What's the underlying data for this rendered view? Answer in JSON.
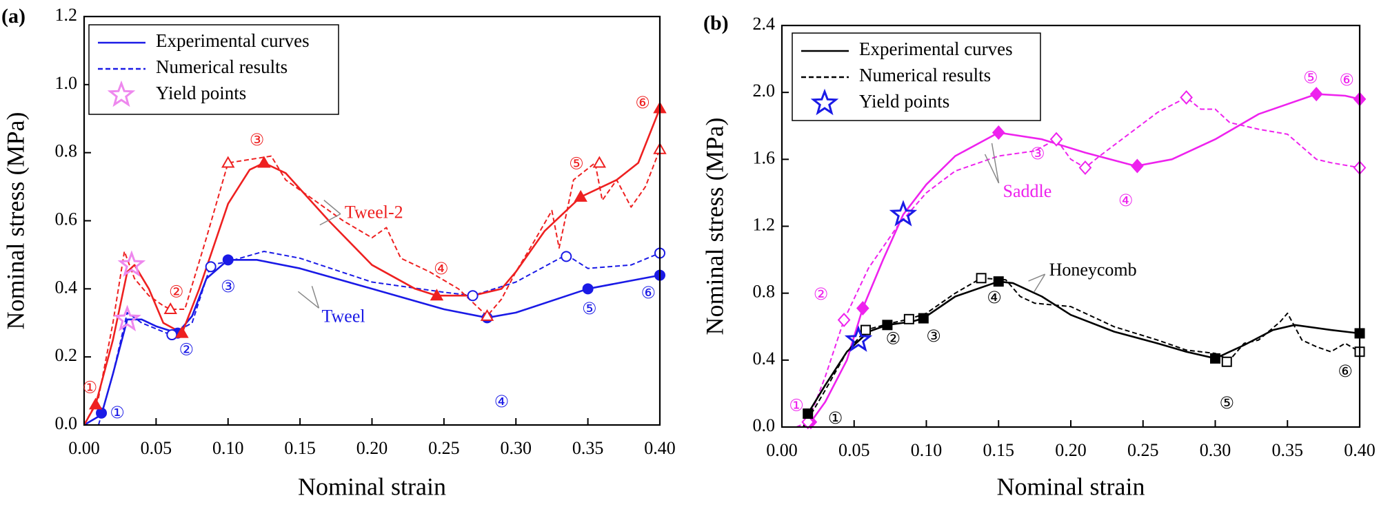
{
  "chart_data": [
    {
      "type": "line",
      "panel_label": "(a)",
      "xlabel": "Nominal strain",
      "ylabel": "Nominal stress (MPa)",
      "xlim": [
        0,
        0.4
      ],
      "ylim": [
        0,
        1.2
      ],
      "xticks": [
        {
          "value": 0,
          "label": "0.00"
        },
        0.05,
        {
          "value": 0.1,
          "label": "0.10"
        },
        0.15,
        {
          "value": 0.2,
          "label": "0.20"
        },
        0.25,
        {
          "value": 0.3,
          "label": "0.30"
        },
        0.35,
        {
          "value": 0.4,
          "label": "0.40"
        }
      ],
      "yticks": [
        {
          "value": 0,
          "label": "0.0"
        },
        0.2,
        0.4,
        0.6,
        0.8,
        {
          "value": 1,
          "label": "1.0"
        },
        1.2
      ],
      "legend": {
        "position": "upper left",
        "entries": [
          {
            "label": "Experimental curves",
            "kind": "line",
            "style": "solid",
            "color": "#1a1ae6"
          },
          {
            "label": "Numerical results",
            "kind": "line",
            "style": "dashed",
            "color": "#1a1ae6"
          },
          {
            "label": "Yield points",
            "kind": "star",
            "color": "#ee88ee"
          }
        ]
      },
      "series": [
        {
          "kind": "line",
          "style": "solid",
          "color": "#1a1ae6",
          "x": [
            0.0,
            0.012,
            0.02,
            0.03,
            0.04,
            0.05,
            0.065,
            0.075,
            0.085,
            0.1,
            0.12,
            0.15,
            0.2,
            0.25,
            0.28,
            0.3,
            0.35,
            0.4
          ],
          "values": [
            0.0,
            0.03,
            0.15,
            0.31,
            0.31,
            0.29,
            0.27,
            0.32,
            0.43,
            0.485,
            0.485,
            0.46,
            0.4,
            0.34,
            0.315,
            0.33,
            0.4,
            0.44
          ]
        },
        {
          "kind": "line",
          "style": "dashed",
          "color": "#1a1ae6",
          "x": [
            0.01,
            0.02,
            0.03,
            0.04,
            0.06,
            0.075,
            0.088,
            0.1,
            0.125,
            0.15,
            0.2,
            0.25,
            0.27,
            0.3,
            0.335,
            0.35,
            0.38,
            0.4
          ],
          "values": [
            0.0,
            0.15,
            0.33,
            0.3,
            0.265,
            0.3,
            0.47,
            0.48,
            0.51,
            0.49,
            0.42,
            0.39,
            0.38,
            0.42,
            0.5,
            0.46,
            0.47,
            0.505
          ]
        },
        {
          "kind": "line",
          "style": "solid",
          "color": "#ee2020",
          "x": [
            0.0,
            0.008,
            0.02,
            0.03,
            0.035,
            0.045,
            0.055,
            0.068,
            0.08,
            0.1,
            0.115,
            0.125,
            0.14,
            0.17,
            0.2,
            0.23,
            0.245,
            0.27,
            0.29,
            0.3,
            0.32,
            0.345,
            0.37,
            0.385,
            0.4
          ],
          "values": [
            0.0,
            0.06,
            0.25,
            0.45,
            0.47,
            0.4,
            0.3,
            0.27,
            0.4,
            0.65,
            0.75,
            0.77,
            0.74,
            0.6,
            0.47,
            0.4,
            0.38,
            0.38,
            0.4,
            0.45,
            0.57,
            0.67,
            0.72,
            0.77,
            0.93
          ]
        },
        {
          "kind": "line",
          "style": "dashed",
          "color": "#ee2020",
          "x": [
            0.0,
            0.01,
            0.02,
            0.028,
            0.035,
            0.045,
            0.055,
            0.06,
            0.07,
            0.085,
            0.1,
            0.115,
            0.13,
            0.14,
            0.16,
            0.18,
            0.2,
            0.21,
            0.22,
            0.24,
            0.26,
            0.28,
            0.29,
            0.3,
            0.31,
            0.325,
            0.33,
            0.34,
            0.355,
            0.36,
            0.37,
            0.38,
            0.39,
            0.4
          ],
          "values": [
            0.0,
            0.08,
            0.3,
            0.51,
            0.43,
            0.38,
            0.35,
            0.34,
            0.34,
            0.55,
            0.77,
            0.78,
            0.79,
            0.72,
            0.66,
            0.6,
            0.55,
            0.58,
            0.49,
            0.45,
            0.4,
            0.32,
            0.37,
            0.45,
            0.52,
            0.63,
            0.52,
            0.72,
            0.77,
            0.66,
            0.72,
            0.64,
            0.7,
            0.81
          ]
        },
        {
          "kind": "markers",
          "marker": "circle",
          "filled": true,
          "color": "#1a1ae6",
          "x": [
            0.012,
            0.065,
            0.1,
            0.28,
            0.35,
            0.4
          ],
          "values": [
            0.035,
            0.27,
            0.485,
            0.315,
            0.4,
            0.44
          ]
        },
        {
          "kind": "markers",
          "marker": "circle",
          "filled": false,
          "color": "#1a1ae6",
          "x": [
            0.061,
            0.088,
            0.27,
            0.335,
            0.4
          ],
          "values": [
            0.265,
            0.465,
            0.38,
            0.495,
            0.505
          ]
        },
        {
          "kind": "markers",
          "marker": "triangle",
          "filled": true,
          "color": "#ee2020",
          "x": [
            0.008,
            0.068,
            0.125,
            0.245,
            0.345,
            0.4
          ],
          "values": [
            0.06,
            0.27,
            0.77,
            0.38,
            0.67,
            0.93
          ]
        },
        {
          "kind": "markers",
          "marker": "triangle",
          "filled": false,
          "color": "#ee2020",
          "x": [
            0.06,
            0.1,
            0.28,
            0.358,
            0.4
          ],
          "values": [
            0.34,
            0.77,
            0.32,
            0.77,
            0.81
          ]
        },
        {
          "kind": "markers",
          "marker": "star",
          "filled": false,
          "color": "#ee88ee",
          "x": [
            0.03,
            0.033
          ],
          "values": [
            0.31,
            0.47
          ]
        }
      ],
      "annotations": [
        {
          "text": "Tweel-2",
          "x": 0.181,
          "y": 0.62,
          "color": "#ee2020"
        },
        {
          "text": "Tweel",
          "x": 0.165,
          "y": 0.315,
          "color": "#1a1ae6"
        },
        {
          "text": "①",
          "x": 0.004,
          "y": 0.108,
          "color": "#ee2020"
        },
        {
          "text": "①",
          "x": 0.023,
          "y": 0.034,
          "color": "#1a1ae6"
        },
        {
          "text": "②",
          "x": 0.064,
          "y": 0.39,
          "color": "#ee2020"
        },
        {
          "text": "②",
          "x": 0.071,
          "y": 0.22,
          "color": "#1a1ae6"
        },
        {
          "text": "③",
          "x": 0.12,
          "y": 0.836,
          "color": "#ee2020"
        },
        {
          "text": "③",
          "x": 0.1,
          "y": 0.405,
          "color": "#1a1ae6"
        },
        {
          "text": "④",
          "x": 0.248,
          "y": 0.457,
          "color": "#ee2020"
        },
        {
          "text": "④",
          "x": 0.29,
          "y": 0.067,
          "color": "#1a1ae6"
        },
        {
          "text": "⑤",
          "x": 0.342,
          "y": 0.766,
          "color": "#ee2020"
        },
        {
          "text": "⑤",
          "x": 0.351,
          "y": 0.34,
          "color": "#1a1ae6"
        },
        {
          "text": "⑥",
          "x": 0.388,
          "y": 0.945,
          "color": "#ee2020"
        },
        {
          "text": "⑥",
          "x": 0.392,
          "y": 0.387,
          "color": "#1a1ae6"
        }
      ]
    },
    {
      "type": "line",
      "panel_label": "(b)",
      "xlabel": "Nominal strain",
      "ylabel": "Nominal stress (MPa)",
      "xlim": [
        0,
        0.4
      ],
      "ylim": [
        0,
        2.4
      ],
      "xticks": [
        {
          "value": 0,
          "label": "0.00"
        },
        0.05,
        {
          "value": 0.1,
          "label": "0.10"
        },
        0.15,
        {
          "value": 0.2,
          "label": "0.20"
        },
        0.25,
        {
          "value": 0.3,
          "label": "0.30"
        },
        0.35,
        {
          "value": 0.4,
          "label": "0.40"
        }
      ],
      "yticks": [
        {
          "value": 0,
          "label": "0.0"
        },
        0.4,
        0.8,
        1.2,
        1.6,
        {
          "value": 2,
          "label": "2.0"
        },
        2.4
      ],
      "legend": {
        "position": "upper left",
        "entries": [
          {
            "label": "Experimental curves",
            "kind": "line",
            "style": "solid",
            "color": "#000000"
          },
          {
            "label": "Numerical results",
            "kind": "line",
            "style": "dashed",
            "color": "#000000"
          },
          {
            "label": "Yield points",
            "kind": "star",
            "color": "#1a1ae6"
          }
        ]
      },
      "series": [
        {
          "kind": "line",
          "style": "solid",
          "color": "#ee22ee",
          "x": [
            0.015,
            0.02,
            0.03,
            0.045,
            0.056,
            0.07,
            0.084,
            0.1,
            0.12,
            0.15,
            0.18,
            0.21,
            0.245,
            0.27,
            0.3,
            0.33,
            0.37,
            0.39,
            0.4
          ],
          "values": [
            0.0,
            0.03,
            0.15,
            0.4,
            0.71,
            1.0,
            1.27,
            1.45,
            1.62,
            1.76,
            1.72,
            1.64,
            1.56,
            1.6,
            1.72,
            1.87,
            1.99,
            1.98,
            1.96
          ]
        },
        {
          "kind": "line",
          "style": "dashed",
          "color": "#ee22ee",
          "x": [
            0.01,
            0.018,
            0.03,
            0.043,
            0.06,
            0.08,
            0.1,
            0.12,
            0.15,
            0.175,
            0.19,
            0.2,
            0.21,
            0.22,
            0.24,
            0.26,
            0.28,
            0.29,
            0.3,
            0.31,
            0.33,
            0.35,
            0.37,
            0.38,
            0.4
          ],
          "values": [
            0.0,
            0.03,
            0.3,
            0.64,
            0.95,
            1.2,
            1.4,
            1.53,
            1.62,
            1.65,
            1.72,
            1.6,
            1.55,
            1.62,
            1.75,
            1.88,
            1.97,
            1.9,
            1.9,
            1.82,
            1.78,
            1.75,
            1.6,
            1.58,
            1.55
          ]
        },
        {
          "kind": "line",
          "style": "solid",
          "color": "#000000",
          "x": [
            0.015,
            0.018,
            0.03,
            0.045,
            0.06,
            0.073,
            0.09,
            0.098,
            0.12,
            0.15,
            0.16,
            0.18,
            0.2,
            0.23,
            0.26,
            0.28,
            0.3,
            0.32,
            0.34,
            0.355,
            0.38,
            0.4
          ],
          "values": [
            0.0,
            0.08,
            0.25,
            0.45,
            0.57,
            0.61,
            0.63,
            0.65,
            0.78,
            0.87,
            0.86,
            0.78,
            0.67,
            0.57,
            0.5,
            0.45,
            0.41,
            0.49,
            0.58,
            0.61,
            0.58,
            0.56
          ]
        },
        {
          "kind": "line",
          "style": "dashed",
          "color": "#000000",
          "x": [
            0.015,
            0.03,
            0.045,
            0.058,
            0.075,
            0.088,
            0.1,
            0.12,
            0.138,
            0.155,
            0.165,
            0.175,
            0.2,
            0.23,
            0.26,
            0.28,
            0.3,
            0.31,
            0.32,
            0.33,
            0.345,
            0.35,
            0.36,
            0.37,
            0.38,
            0.39,
            0.4
          ],
          "values": [
            0.0,
            0.22,
            0.45,
            0.58,
            0.62,
            0.645,
            0.68,
            0.8,
            0.89,
            0.88,
            0.78,
            0.74,
            0.72,
            0.6,
            0.52,
            0.46,
            0.44,
            0.4,
            0.5,
            0.52,
            0.63,
            0.68,
            0.52,
            0.48,
            0.45,
            0.5,
            0.45
          ]
        },
        {
          "kind": "markers",
          "marker": "diamond",
          "filled": true,
          "color": "#ee22ee",
          "x": [
            0.02,
            0.056,
            0.15,
            0.246,
            0.37,
            0.4
          ],
          "values": [
            0.03,
            0.71,
            1.76,
            1.56,
            1.99,
            1.96
          ]
        },
        {
          "kind": "markers",
          "marker": "diamond",
          "filled": false,
          "color": "#ee22ee",
          "x": [
            0.018,
            0.043,
            0.19,
            0.21,
            0.28,
            0.4
          ],
          "values": [
            0.03,
            0.64,
            1.72,
            1.55,
            1.97,
            1.55
          ]
        },
        {
          "kind": "markers",
          "marker": "square",
          "filled": true,
          "color": "#000000",
          "x": [
            0.018,
            0.073,
            0.098,
            0.15,
            0.3,
            0.4
          ],
          "values": [
            0.08,
            0.61,
            0.65,
            0.87,
            0.41,
            0.56
          ]
        },
        {
          "kind": "markers",
          "marker": "square",
          "filled": false,
          "color": "#000000",
          "x": [
            0.058,
            0.088,
            0.138,
            0.308,
            0.4
          ],
          "values": [
            0.58,
            0.645,
            0.89,
            0.39,
            0.45
          ]
        },
        {
          "kind": "markers",
          "marker": "star",
          "filled": false,
          "color": "#1a1ae6",
          "x": [
            0.084,
            0.053
          ],
          "values": [
            1.27,
            0.52
          ]
        }
      ],
      "annotations": [
        {
          "text": "Saddle",
          "x": 0.153,
          "y": 1.4,
          "color": "#ee22ee"
        },
        {
          "text": "Honeycomb",
          "x": 0.185,
          "y": 0.93,
          "color": "#000000"
        },
        {
          "text": "①",
          "x": 0.01,
          "y": 0.126,
          "color": "#ee22ee"
        },
        {
          "text": "①",
          "x": 0.037,
          "y": 0.05,
          "color": "#000000"
        },
        {
          "text": "②",
          "x": 0.027,
          "y": 0.79,
          "color": "#ee22ee"
        },
        {
          "text": "②",
          "x": 0.077,
          "y": 0.525,
          "color": "#000000"
        },
        {
          "text": "③",
          "x": 0.177,
          "y": 1.63,
          "color": "#ee22ee"
        },
        {
          "text": "③",
          "x": 0.105,
          "y": 0.54,
          "color": "#000000"
        },
        {
          "text": "④",
          "x": 0.238,
          "y": 1.35,
          "color": "#ee22ee"
        },
        {
          "text": "④",
          "x": 0.147,
          "y": 0.77,
          "color": "#000000"
        },
        {
          "text": "⑤",
          "x": 0.366,
          "y": 2.085,
          "color": "#ee22ee"
        },
        {
          "text": "⑤",
          "x": 0.308,
          "y": 0.14,
          "color": "#000000"
        },
        {
          "text": "⑥",
          "x": 0.391,
          "y": 2.07,
          "color": "#ee22ee"
        },
        {
          "text": "⑥",
          "x": 0.39,
          "y": 0.33,
          "color": "#000000"
        }
      ]
    }
  ]
}
